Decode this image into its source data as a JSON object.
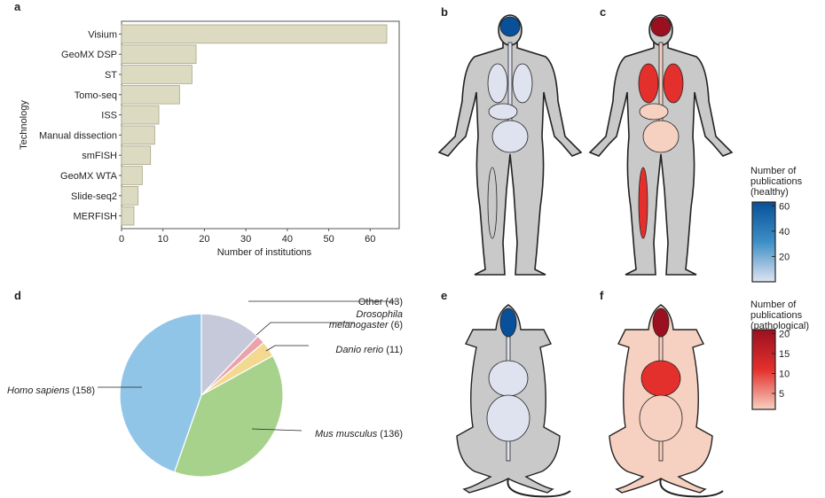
{
  "panels": {
    "a": "a",
    "b": "b",
    "c": "c",
    "d": "d",
    "e": "e",
    "f": "f"
  },
  "chart_data": [
    {
      "type": "bar",
      "orientation": "horizontal",
      "title": "",
      "xlabel": "Number of institutions",
      "ylabel": "Technology",
      "categories": [
        "Visium",
        "GeoMX DSP",
        "ST",
        "Tomo-seq",
        "ISS",
        "Manual dissection",
        "smFISH",
        "GeoMX WTA",
        "Slide-seq2",
        "MERFISH"
      ],
      "values": [
        64,
        18,
        17,
        14,
        9,
        8,
        7,
        5,
        4,
        3
      ],
      "xticks": [
        "0",
        "10",
        "20",
        "30",
        "40",
        "50",
        "60"
      ],
      "xlim": [
        0,
        67
      ],
      "color": "#dcdac0"
    },
    {
      "type": "pie",
      "labels": [
        "Other (43)",
        "Drosophila melanogaster (6)",
        "Danio rerio (11)",
        "Mus musculus (136)",
        "Homo sapiens (158)"
      ],
      "label_lines": [
        [
          "Other (43)"
        ],
        [
          "Drosophila",
          "melanogaster (6)"
        ],
        [
          "Danio rerio (11)"
        ],
        [
          "Mus musculus (136)"
        ],
        [
          "Homo sapiens (158)"
        ]
      ],
      "values": [
        43,
        6,
        11,
        136,
        158
      ],
      "colors": [
        "#c6c9da",
        "#eba3ab",
        "#f3d88f",
        "#a7d28c",
        "#90c5e8"
      ]
    }
  ],
  "colorbars": {
    "healthy": {
      "title": [
        "Number of",
        "publications",
        "(healthy)"
      ],
      "ticks": [
        "20",
        "40",
        "60"
      ],
      "range": [
        0,
        63
      ],
      "colors": [
        "#dfe3f0",
        "#3d8fc6",
        "#08509a"
      ]
    },
    "pathological": {
      "title": [
        "Number of",
        "publications",
        "(pathological)"
      ],
      "ticks": [
        "5",
        "10",
        "15",
        "20"
      ],
      "range": [
        1,
        21
      ],
      "colors": [
        "#f6d0c0",
        "#e4302c",
        "#9a1020"
      ]
    }
  }
}
